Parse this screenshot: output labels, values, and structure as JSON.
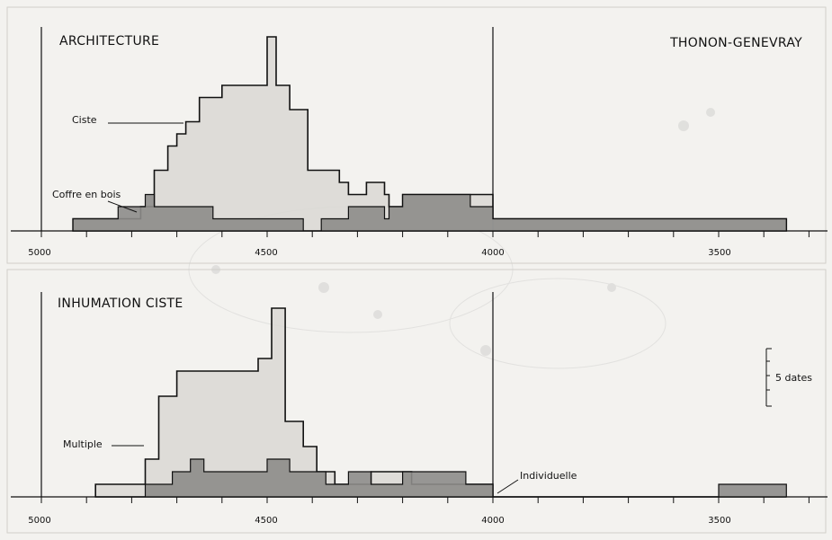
{
  "header": {
    "site": "THONON-GENEVRAY"
  },
  "scale_note": "5 dates",
  "chart_data": [
    {
      "type": "area",
      "title": "ARCHITECTURE",
      "x_axis": {
        "ticks": [
          5000,
          4500,
          4000,
          3500
        ],
        "reversed": true,
        "unit": "BC"
      },
      "series": [
        {
          "name": "Ciste",
          "style": "light-fill",
          "steps": [
            [
              4930,
              1
            ],
            [
              4880,
              1
            ],
            [
              4780,
              2
            ],
            [
              4750,
              5
            ],
            [
              4720,
              7
            ],
            [
              4700,
              8
            ],
            [
              4680,
              9
            ],
            [
              4650,
              11
            ],
            [
              4600,
              12
            ],
            [
              4520,
              12
            ],
            [
              4500,
              16
            ],
            [
              4480,
              12
            ],
            [
              4450,
              10
            ],
            [
              4410,
              5
            ],
            [
              4360,
              5
            ],
            [
              4340,
              4
            ],
            [
              4320,
              3
            ],
            [
              4300,
              3
            ],
            [
              4280,
              4
            ],
            [
              4250,
              4
            ],
            [
              4240,
              3
            ],
            [
              4230,
              2
            ],
            [
              4200,
              3
            ],
            [
              4060,
              3
            ],
            [
              4000,
              1
            ],
            [
              3800,
              1
            ],
            [
              3500,
              1
            ],
            [
              3350,
              1
            ]
          ]
        },
        {
          "name": "Coffre en bois",
          "style": "dark-fill",
          "steps": [
            [
              4930,
              1
            ],
            [
              4880,
              1
            ],
            [
              4830,
              2
            ],
            [
              4780,
              2
            ],
            [
              4770,
              3
            ],
            [
              4750,
              2
            ],
            [
              4640,
              2
            ],
            [
              4620,
              1
            ],
            [
              4500,
              1
            ],
            [
              4480,
              1
            ],
            [
              4420,
              0
            ],
            [
              4380,
              1
            ],
            [
              4330,
              1
            ],
            [
              4320,
              2
            ],
            [
              4270,
              2
            ],
            [
              4240,
              1
            ],
            [
              4230,
              2
            ],
            [
              4200,
              3
            ],
            [
              4050,
              2
            ],
            [
              4000,
              1
            ],
            [
              3800,
              1
            ],
            [
              3500,
              1
            ],
            [
              3350,
              1
            ]
          ]
        }
      ]
    },
    {
      "type": "area",
      "title": "INHUMATION CISTE",
      "x_axis": {
        "ticks": [
          5000,
          4500,
          4000,
          3500
        ],
        "reversed": true,
        "unit": "BC"
      },
      "series": [
        {
          "name": "Multiple",
          "style": "light-fill",
          "steps": [
            [
              4880,
              1
            ],
            [
              4770,
              3
            ],
            [
              4740,
              8
            ],
            [
              4700,
              10
            ],
            [
              4620,
              10
            ],
            [
              4520,
              11
            ],
            [
              4510,
              11
            ],
            [
              4490,
              15
            ],
            [
              4460,
              6
            ],
            [
              4420,
              4
            ],
            [
              4390,
              2
            ],
            [
              4360,
              2
            ],
            [
              4350,
              1
            ],
            [
              4320,
              1
            ],
            [
              4300,
              1
            ],
            [
              4270,
              2
            ],
            [
              4220,
              2
            ],
            [
              4180,
              1
            ],
            [
              4060,
              1
            ],
            [
              4000,
              0
            ],
            [
              3500,
              0
            ],
            [
              3350,
              0
            ]
          ]
        },
        {
          "name": "Individuelle",
          "style": "dark-fill",
          "steps": [
            [
              4880,
              0
            ],
            [
              4770,
              1
            ],
            [
              4730,
              1
            ],
            [
              4710,
              2
            ],
            [
              4670,
              3
            ],
            [
              4640,
              2
            ],
            [
              4610,
              2
            ],
            [
              4570,
              2
            ],
            [
              4560,
              2
            ],
            [
              4500,
              3
            ],
            [
              4450,
              2
            ],
            [
              4370,
              1
            ],
            [
              4340,
              1
            ],
            [
              4320,
              2
            ],
            [
              4300,
              2
            ],
            [
              4270,
              1
            ],
            [
              4200,
              2
            ],
            [
              4060,
              1
            ],
            [
              4000,
              0
            ],
            [
              3500,
              1
            ],
            [
              3350,
              1
            ]
          ]
        }
      ]
    }
  ]
}
